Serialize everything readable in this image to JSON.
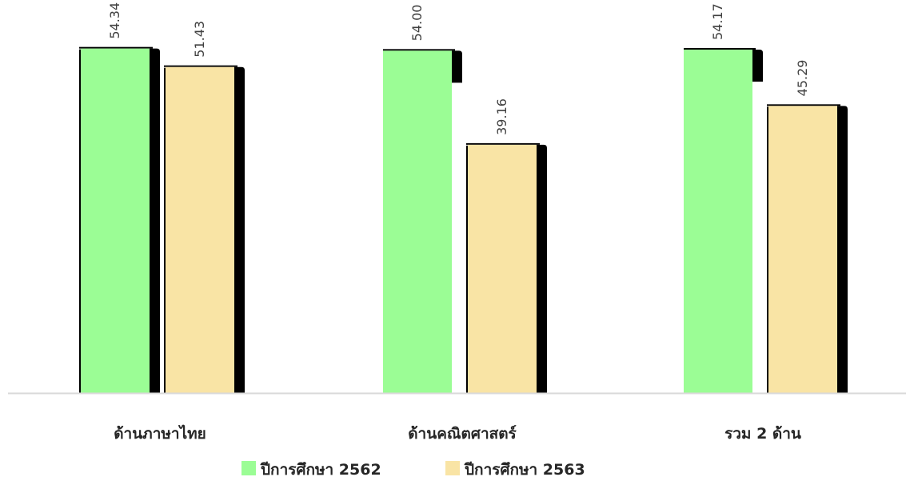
{
  "chart_data": {
    "type": "bar",
    "title": "",
    "xlabel": "",
    "ylabel": "",
    "categories": [
      "ด้านภาษาไทย",
      "ด้านคณิตศาสตร์",
      "รวม 2 ด้าน"
    ],
    "series": [
      {
        "name": "ปีการศึกษา 2562",
        "values": [
          54.34,
          54.0,
          54.17
        ],
        "color": "#9BFD95"
      },
      {
        "name": "ปีการศึกษา 2563",
        "values": [
          51.43,
          39.16,
          45.29
        ],
        "color": "#F9E4A5"
      }
    ],
    "value_labels": [
      [
        "54.34",
        "54.00",
        "54.17"
      ],
      [
        "51.43",
        "39.16",
        "45.29"
      ]
    ],
    "ylim": [
      0,
      62
    ],
    "grid": false,
    "legend_position": "bottom",
    "shadow_color": "#000000",
    "axis_color": "#D9D9D9"
  }
}
